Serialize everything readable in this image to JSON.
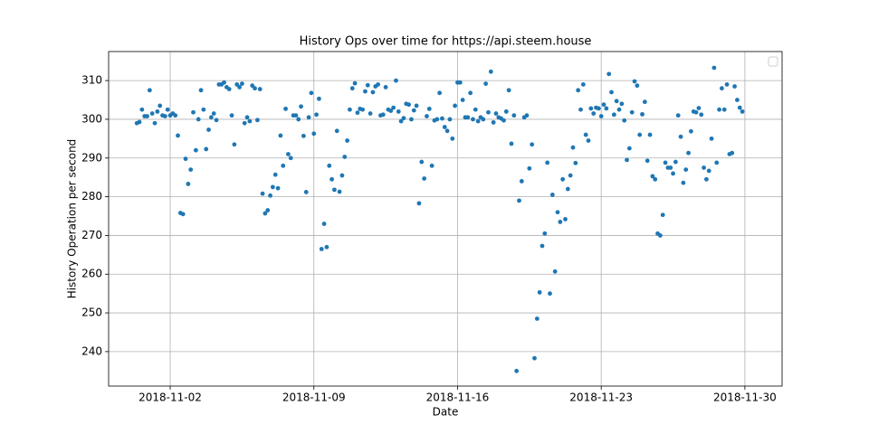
{
  "chart_data": {
    "type": "scatter",
    "title": "History Ops over time for https://api.steem.house",
    "x_label": "Date",
    "y_label": "History Operation per second",
    "color": "#1f77b4",
    "grid": true,
    "xlim": [
      "2018-10-30T00:00",
      "2018-12-01T19:30"
    ],
    "xticks": [
      "2018-11-02",
      "2018-11-09",
      "2018-11-16",
      "2018-11-23",
      "2018-11-30"
    ],
    "ylim": [
      231.1,
      317.5
    ],
    "yticks": [
      240,
      250,
      260,
      270,
      280,
      290,
      300,
      310
    ],
    "x": [
      "2018-10-31T09:00",
      "2018-10-31T12:00",
      "2018-10-31T15:00",
      "2018-10-31T18:00",
      "2018-10-31T21:00",
      "2018-11-01T00:00",
      "2018-11-01T03:00",
      "2018-11-01T06:00",
      "2018-11-01T09:00",
      "2018-11-01T12:00",
      "2018-11-01T15:00",
      "2018-11-01T18:00",
      "2018-11-01T21:00",
      "2018-11-02T00:00",
      "2018-11-02T03:00",
      "2018-11-02T06:00",
      "2018-11-02T09:00",
      "2018-11-02T12:00",
      "2018-11-02T15:00",
      "2018-11-02T18:00",
      "2018-11-02T21:00",
      "2018-11-03T00:00",
      "2018-11-03T03:00",
      "2018-11-03T06:00",
      "2018-11-03T09:00",
      "2018-11-03T12:00",
      "2018-11-03T15:00",
      "2018-11-03T18:00",
      "2018-11-03T21:00",
      "2018-11-04T00:00",
      "2018-11-04T03:00",
      "2018-11-04T06:00",
      "2018-11-04T09:00",
      "2018-11-04T12:00",
      "2018-11-04T15:00",
      "2018-11-04T18:00",
      "2018-11-04T21:00",
      "2018-11-05T00:00",
      "2018-11-05T03:00",
      "2018-11-05T06:00",
      "2018-11-05T09:00",
      "2018-11-05T12:00",
      "2018-11-05T15:00",
      "2018-11-05T18:00",
      "2018-11-05T21:00",
      "2018-11-06T00:00",
      "2018-11-06T03:00",
      "2018-11-06T06:00",
      "2018-11-06T09:00",
      "2018-11-06T12:00",
      "2018-11-06T15:00",
      "2018-11-06T18:00",
      "2018-11-06T21:00",
      "2018-11-07T00:00",
      "2018-11-07T03:00",
      "2018-11-07T06:00",
      "2018-11-07T09:00",
      "2018-11-07T12:00",
      "2018-11-07T15:00",
      "2018-11-07T18:00",
      "2018-11-07T21:00",
      "2018-11-08T00:00",
      "2018-11-08T03:00",
      "2018-11-08T06:00",
      "2018-11-08T09:00",
      "2018-11-08T12:00",
      "2018-11-08T15:00",
      "2018-11-08T18:00",
      "2018-11-08T21:00",
      "2018-11-09T00:00",
      "2018-11-09T03:00",
      "2018-11-09T06:00",
      "2018-11-09T09:00",
      "2018-11-09T12:00",
      "2018-11-09T15:00",
      "2018-11-09T18:00",
      "2018-11-09T21:00",
      "2018-11-10T00:00",
      "2018-11-10T03:00",
      "2018-11-10T06:00",
      "2018-11-10T09:00",
      "2018-11-10T12:00",
      "2018-11-10T15:00",
      "2018-11-10T18:00",
      "2018-11-10T21:00",
      "2018-11-11T00:00",
      "2018-11-11T03:00",
      "2018-11-11T06:00",
      "2018-11-11T09:00",
      "2018-11-11T12:00",
      "2018-11-11T15:00",
      "2018-11-11T18:00",
      "2018-11-11T21:00",
      "2018-11-12T00:00",
      "2018-11-12T03:00",
      "2018-11-12T06:00",
      "2018-11-12T09:00",
      "2018-11-12T12:00",
      "2018-11-12T15:00",
      "2018-11-12T18:00",
      "2018-11-12T21:00",
      "2018-11-13T00:00",
      "2018-11-13T03:00",
      "2018-11-13T06:00",
      "2018-11-13T09:00",
      "2018-11-13T12:00",
      "2018-11-13T15:00",
      "2018-11-13T18:00",
      "2018-11-13T21:00",
      "2018-11-14T00:00",
      "2018-11-14T03:00",
      "2018-11-14T06:00",
      "2018-11-14T09:00",
      "2018-11-14T12:00",
      "2018-11-14T15:00",
      "2018-11-14T18:00",
      "2018-11-14T21:00",
      "2018-11-15T00:00",
      "2018-11-15T03:00",
      "2018-11-15T06:00",
      "2018-11-15T09:00",
      "2018-11-15T12:00",
      "2018-11-15T15:00",
      "2018-11-15T18:00",
      "2018-11-15T21:00",
      "2018-11-16T00:00",
      "2018-11-16T03:00",
      "2018-11-16T06:00",
      "2018-11-16T09:00",
      "2018-11-16T12:00",
      "2018-11-16T15:00",
      "2018-11-16T18:00",
      "2018-11-16T21:00",
      "2018-11-17T00:00",
      "2018-11-17T03:00",
      "2018-11-17T06:00",
      "2018-11-17T09:00",
      "2018-11-17T12:00",
      "2018-11-17T15:00",
      "2018-11-17T18:00",
      "2018-11-17T21:00",
      "2018-11-18T00:00",
      "2018-11-18T03:00",
      "2018-11-18T06:00",
      "2018-11-18T09:00",
      "2018-11-18T12:00",
      "2018-11-18T15:00",
      "2018-11-18T18:00",
      "2018-11-18T21:00",
      "2018-11-19T00:00",
      "2018-11-19T03:00",
      "2018-11-19T06:00",
      "2018-11-19T09:00",
      "2018-11-19T12:00",
      "2018-11-19T15:00",
      "2018-11-19T18:00",
      "2018-11-19T21:00",
      "2018-11-20T00:00",
      "2018-11-20T03:00",
      "2018-11-20T06:00",
      "2018-11-20T09:00",
      "2018-11-20T12:00",
      "2018-11-20T15:00",
      "2018-11-20T18:00",
      "2018-11-20T21:00",
      "2018-11-21T00:00",
      "2018-11-21T03:00",
      "2018-11-21T06:00",
      "2018-11-21T09:00",
      "2018-11-21T12:00",
      "2018-11-21T15:00",
      "2018-11-21T18:00",
      "2018-11-21T21:00",
      "2018-11-22T00:00",
      "2018-11-22T03:00",
      "2018-11-22T06:00",
      "2018-11-22T09:00",
      "2018-11-22T12:00",
      "2018-11-22T15:00",
      "2018-11-22T18:00",
      "2018-11-22T21:00",
      "2018-11-23T00:00",
      "2018-11-23T03:00",
      "2018-11-23T06:00",
      "2018-11-23T09:00",
      "2018-11-23T12:00",
      "2018-11-23T15:00",
      "2018-11-23T18:00",
      "2018-11-23T21:00",
      "2018-11-24T00:00",
      "2018-11-24T03:00",
      "2018-11-24T06:00",
      "2018-11-24T09:00",
      "2018-11-24T12:00",
      "2018-11-24T15:00",
      "2018-11-24T18:00",
      "2018-11-24T21:00",
      "2018-11-25T00:00",
      "2018-11-25T03:00",
      "2018-11-25T06:00",
      "2018-11-25T09:00",
      "2018-11-25T12:00",
      "2018-11-25T15:00",
      "2018-11-25T18:00",
      "2018-11-25T21:00",
      "2018-11-26T00:00",
      "2018-11-26T03:00",
      "2018-11-26T06:00",
      "2018-11-26T09:00",
      "2018-11-26T12:00",
      "2018-11-26T15:00",
      "2018-11-26T18:00",
      "2018-11-26T21:00",
      "2018-11-27T00:00",
      "2018-11-27T03:00",
      "2018-11-27T06:00",
      "2018-11-27T09:00",
      "2018-11-27T12:00",
      "2018-11-27T15:00",
      "2018-11-27T18:00",
      "2018-11-27T21:00",
      "2018-11-28T00:00",
      "2018-11-28T03:00",
      "2018-11-28T06:00",
      "2018-11-28T09:00",
      "2018-11-28T12:00",
      "2018-11-28T15:00",
      "2018-11-28T18:00",
      "2018-11-28T21:00",
      "2018-11-29T00:00",
      "2018-11-29T03:00",
      "2018-11-29T06:00",
      "2018-11-29T09:00",
      "2018-11-29T12:00",
      "2018-11-29T15:00",
      "2018-11-29T18:00",
      "2018-11-29T21:00"
    ],
    "values": [
      299,
      299.3,
      302.5,
      300.8,
      300.8,
      307.5,
      301.5,
      299,
      302,
      303.5,
      301,
      300.8,
      302.5,
      301,
      301.5,
      301,
      295.8,
      275.8,
      275.5,
      289.8,
      283.3,
      287,
      301.8,
      292,
      300,
      307.5,
      302.5,
      292.3,
      297.3,
      300.5,
      301.5,
      299.8,
      309,
      309,
      309.5,
      308.3,
      307.8,
      301,
      293.5,
      309,
      308.3,
      309.2,
      299,
      300.5,
      299.5,
      308.7,
      308,
      299.8,
      307.8,
      280.8,
      275.7,
      276.5,
      280.3,
      282.5,
      285.7,
      282.2,
      295.8,
      288,
      302.7,
      291,
      290,
      301,
      301,
      300,
      303.3,
      295.7,
      281.2,
      300.5,
      306.8,
      296.3,
      301.2,
      305.3,
      266.5,
      273,
      267,
      288,
      284.5,
      281.8,
      297,
      281.3,
      285.5,
      290.3,
      294.5,
      302.5,
      308,
      309.3,
      301.7,
      302.7,
      302.5,
      307.2,
      308.8,
      301.5,
      307,
      308.5,
      309,
      301,
      301.2,
      308.3,
      302.5,
      302.2,
      303,
      310,
      302,
      299.5,
      300.3,
      304,
      303.8,
      300,
      302.3,
      303.5,
      278.3,
      289,
      284.7,
      300.8,
      302.7,
      288,
      299.7,
      300,
      306.8,
      300.2,
      298,
      297,
      300,
      295,
      303.5,
      309.5,
      309.5,
      305,
      300.5,
      300.5,
      306.8,
      300,
      302.5,
      299.5,
      300.5,
      300,
      309.2,
      301.8,
      312.3,
      299.2,
      301.5,
      300.5,
      300.2,
      299.7,
      302,
      307.5,
      293.7,
      301,
      235,
      279,
      284,
      300.5,
      301,
      287.3,
      293.5,
      238.3,
      248.5,
      255.3,
      267.3,
      270.5,
      288.8,
      255,
      280.5,
      260.7,
      276,
      273.5,
      284.5,
      274.2,
      282,
      285.5,
      292.7,
      288.7,
      307.5,
      302.5,
      309,
      296,
      294.5,
      302.8,
      301.5,
      303,
      302.8,
      300.8,
      303.8,
      302.8,
      311.7,
      307,
      301.2,
      304.7,
      302.5,
      304,
      299.7,
      289.5,
      292.5,
      301.8,
      309.8,
      308.7,
      296,
      301.3,
      304.5,
      289.3,
      296,
      285.3,
      284.5,
      270.5,
      270,
      275.3,
      288.8,
      287.5,
      287.5,
      286,
      289,
      301,
      295.5,
      283.6,
      287,
      291.3,
      296.9,
      302,
      301.8,
      302.9,
      301.2,
      287.5,
      284.5,
      286.7,
      295,
      313.3,
      288.8,
      302.5,
      308,
      302.5,
      309,
      291,
      291.3,
      308.5,
      305,
      303,
      302
    ]
  }
}
